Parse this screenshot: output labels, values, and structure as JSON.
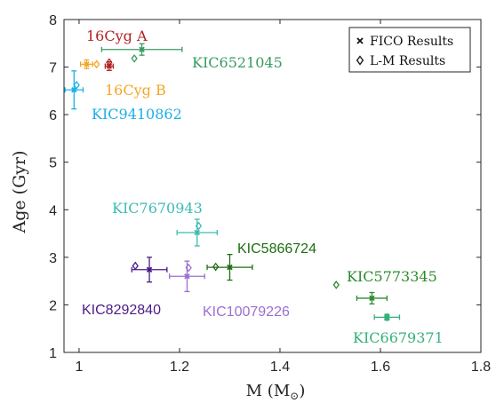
{
  "chart_data": {
    "type": "scatter",
    "title": "",
    "xlabel": "M (M",
    "xlabel_sub": "⊙",
    "xlabel_close": ")",
    "ylabel": "Age (Gyr)",
    "xlim": [
      0.97,
      1.8
    ],
    "ylim": [
      1,
      8
    ],
    "xticks": [
      1,
      1.2,
      1.4,
      1.6,
      1.8
    ],
    "xtick_labels": [
      "1",
      "1.2",
      "1.4",
      "1.6",
      "1.8"
    ],
    "yticks": [
      1,
      2,
      3,
      4,
      5,
      6,
      7,
      8
    ],
    "ytick_labels": [
      "1",
      "2",
      "3",
      "4",
      "5",
      "6",
      "7",
      "8"
    ],
    "grid": false,
    "legend": {
      "placement": "top-right",
      "entries": [
        {
          "marker": "x",
          "label": "FICO Results"
        },
        {
          "marker": "diamond",
          "label": "L-M Results"
        }
      ]
    },
    "stars": [
      {
        "name": "16Cyg A",
        "color": "#b22222",
        "fico": {
          "mass": 1.06,
          "age": 7.02,
          "mass_err": 0.008,
          "age_err": 0.09
        },
        "lm": {
          "mass": 1.06,
          "age": 7.1
        }
      },
      {
        "name": "16Cyg B",
        "color": "#f5a623",
        "fico": {
          "mass": 1.015,
          "age": 7.06,
          "mass_err": 0.012,
          "age_err": 0.09
        },
        "lm": {
          "mass": 1.035,
          "age": 7.06
        }
      },
      {
        "name": "KIC6521045",
        "color": "#3a9a62",
        "fico": {
          "mass": 1.125,
          "age": 7.37,
          "mass_err": 0.08,
          "age_err": 0.12
        },
        "lm": {
          "mass": 1.11,
          "age": 7.18
        }
      },
      {
        "name": "KIC9410862",
        "color": "#1ab0e8",
        "fico": {
          "mass": 0.99,
          "age": 6.52,
          "mass_err": 0.018,
          "age_err": 0.4
        },
        "lm": {
          "mass": 0.995,
          "age": 6.62
        }
      },
      {
        "name": "KIC7670943",
        "color": "#3bbcb4",
        "fico": {
          "mass": 1.235,
          "age": 3.52,
          "mass_err": 0.04,
          "age_err": 0.28
        },
        "lm": {
          "mass": 1.238,
          "age": 3.66
        }
      },
      {
        "name": "KIC5866724",
        "color": "#1e6e12",
        "fico": {
          "mass": 1.3,
          "age": 2.79,
          "mass_err": 0.045,
          "age_err": 0.27
        },
        "lm": {
          "mass": 1.272,
          "age": 2.8
        }
      },
      {
        "name": "KIC8292840",
        "color": "#4b1a8a",
        "fico": {
          "mass": 1.14,
          "age": 2.74,
          "mass_err": 0.035,
          "age_err": 0.26
        },
        "lm": {
          "mass": 1.112,
          "age": 2.82
        }
      },
      {
        "name": "KIC10079226",
        "color": "#9b6fd0",
        "fico": {
          "mass": 1.215,
          "age": 2.6,
          "mass_err": 0.035,
          "age_err": 0.32
        },
        "lm": {
          "mass": 1.218,
          "age": 2.78
        }
      },
      {
        "name": "KIC5773345",
        "color": "#2c8a2c",
        "fico": {
          "mass": 1.583,
          "age": 2.14,
          "mass_err": 0.03,
          "age_err": 0.12
        },
        "lm": {
          "mass": 1.512,
          "age": 2.42
        }
      },
      {
        "name": "KIC6679371",
        "color": "#34b07a",
        "fico": {
          "mass": 1.613,
          "age": 1.74,
          "mass_err": 0.025,
          "age_err": 0.06
        },
        "lm": {
          "mass": 1.613,
          "age": 1.74
        }
      }
    ]
  }
}
